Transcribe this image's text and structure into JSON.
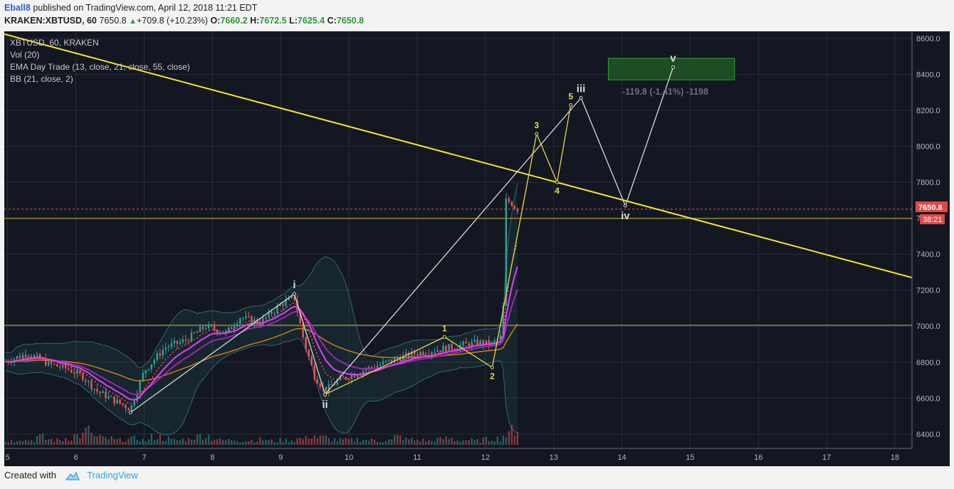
{
  "header": {
    "author": "Eball8",
    "published": "published on TradingView.com, April 12, 2018 11:21 EDT",
    "symbol": "KRAKEN:XBTUSD, 60",
    "last": "7650.8",
    "up_arrow": "▲",
    "change": "+709.8 (+10.23%)",
    "o_label": "O:",
    "o": "7660.2",
    "h_label": "H:",
    "h": "7672.5",
    "l_label": "L:",
    "l": "7625.4",
    "c_label": "C:",
    "c": "7650.8"
  },
  "legend": {
    "symbol": "XBTUSD, 60, KRAKEN",
    "vol": "Vol (20)",
    "ema": "EMA Day Trade (13, close, 21, close, 55, close)",
    "bb": "BB (21, close, 2)"
  },
  "price_tag": {
    "value": "7650.8",
    "countdown": "38:21"
  },
  "measure_label": "-119.8 (-1.41%) -1198",
  "footer": {
    "created": "Created with",
    "brand": "TradingView"
  },
  "colors": {
    "background": "#131722",
    "grid": "#2a2e39",
    "up": "#26a69a",
    "down": "#ef5350",
    "trendline": "#f5e52a",
    "hline": "#8a8a2a",
    "ema13": "#e040fb",
    "ema55": "#c77f1a",
    "bb": "#2f6a6a",
    "wave_white": "#d8d8d8",
    "wave_yellow": "#e8d84a",
    "price_line": "#ef5350"
  },
  "chart_data": {
    "type": "candlestick",
    "title": "XBTUSD, 60, KRAKEN",
    "y_ticks": [
      8600.0,
      8400.0,
      8200.0,
      8000.0,
      7800.0,
      7600.0,
      7400.0,
      7200.0,
      7000.0,
      6800.0,
      6600.0,
      6400.0
    ],
    "ylim": [
      6320,
      8640
    ],
    "x_ticks": [
      5,
      6,
      7,
      8,
      9,
      10,
      11,
      12,
      13,
      14,
      15,
      16,
      17,
      18
    ],
    "x_ticks_labels": [
      "5",
      "6",
      "7",
      "8",
      "9",
      "10",
      "11",
      "12",
      "13",
      "14",
      "15",
      "16",
      "17",
      "18"
    ],
    "xlim": [
      4.95,
      18.25
    ],
    "last_price": 7650.8,
    "horizontal_lines": [
      7600,
      7005
    ],
    "trendline": {
      "from": {
        "x": 4.95,
        "y": 8625
      },
      "to": {
        "x": 18.25,
        "y": 7270
      }
    },
    "target_zone": {
      "x_start": 13.8,
      "x_end": 15.65,
      "y_low": 8370,
      "y_high": 8490
    },
    "elliott_waves_major": [
      {
        "label": "",
        "x": 6.8,
        "y": 6520
      },
      {
        "label": "i",
        "x": 9.2,
        "y": 7180
      },
      {
        "label": "ii",
        "x": 9.65,
        "y": 6620
      },
      {
        "label": "iii",
        "x": 13.4,
        "y": 8270
      },
      {
        "label": "iv",
        "x": 14.05,
        "y": 7670
      },
      {
        "label": "v",
        "x": 14.75,
        "y": 8440
      }
    ],
    "elliott_waves_minor": [
      {
        "label": "",
        "x": 9.65,
        "y": 6620
      },
      {
        "label": "1",
        "x": 11.4,
        "y": 6940
      },
      {
        "label": "2",
        "x": 12.1,
        "y": 6770
      },
      {
        "label": "3",
        "x": 12.75,
        "y": 8070
      },
      {
        "label": "4",
        "x": 13.05,
        "y": 7800
      },
      {
        "label": "5",
        "x": 13.25,
        "y": 8230
      }
    ],
    "price_path": [
      [
        4.95,
        6800
      ],
      [
        5.3,
        6850
      ],
      [
        5.6,
        6790
      ],
      [
        5.9,
        6760
      ],
      [
        6.1,
        6720
      ],
      [
        6.3,
        6640
      ],
      [
        6.5,
        6600
      ],
      [
        6.8,
        6540
      ],
      [
        7.0,
        6750
      ],
      [
        7.3,
        6880
      ],
      [
        7.6,
        6920
      ],
      [
        7.9,
        7000
      ],
      [
        8.2,
        6960
      ],
      [
        8.4,
        7050
      ],
      [
        8.7,
        7020
      ],
      [
        9.0,
        7120
      ],
      [
        9.2,
        7160
      ],
      [
        9.35,
        6900
      ],
      [
        9.5,
        6720
      ],
      [
        9.65,
        6640
      ],
      [
        9.85,
        6700
      ],
      [
        10.1,
        6740
      ],
      [
        10.4,
        6780
      ],
      [
        10.7,
        6820
      ],
      [
        11.0,
        6850
      ],
      [
        11.3,
        6870
      ],
      [
        11.6,
        6890
      ],
      [
        11.9,
        6910
      ],
      [
        12.1,
        6900
      ],
      [
        12.25,
        6950
      ],
      [
        12.3,
        7700
      ],
      [
        12.4,
        7680
      ],
      [
        12.45,
        7650
      ]
    ],
    "volume_profile": [
      0.25,
      0.4,
      0.3,
      0.5,
      0.35,
      0.3,
      0.45,
      0.6,
      0.9,
      0.5,
      0.4,
      0.3,
      0.35,
      0.4,
      0.3,
      0.5,
      0.4,
      0.3,
      0.35,
      0.5,
      0.6,
      0.4,
      0.3,
      0.35,
      0.25,
      0.3,
      0.35,
      0.25,
      0.3,
      0.3,
      0.4,
      0.6,
      0.45,
      0.35,
      0.3,
      0.3,
      0.35,
      0.3,
      0.25,
      0.3,
      0.5,
      0.35,
      0.3,
      0.25,
      0.35,
      0.4,
      0.3,
      0.3,
      0.25,
      0.35,
      0.4,
      0.6,
      1.0
    ]
  }
}
